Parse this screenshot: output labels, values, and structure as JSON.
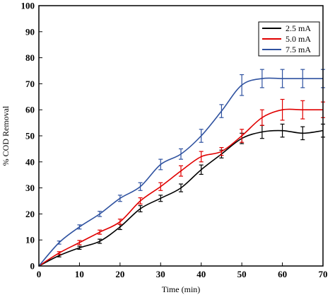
{
  "chart_data": {
    "type": "line",
    "xlabel": "Time (min)",
    "ylabel": "% COD Removal",
    "xlim": [
      0,
      70
    ],
    "ylim": [
      0,
      100
    ],
    "xticks": [
      0,
      10,
      20,
      30,
      40,
      50,
      60,
      70
    ],
    "yticks": [
      0,
      10,
      20,
      30,
      40,
      50,
      60,
      70,
      80,
      90,
      100
    ],
    "grid": false,
    "legend_position": "top-right",
    "x": [
      0,
      5,
      10,
      15,
      20,
      25,
      30,
      35,
      40,
      45,
      50,
      55,
      60,
      65,
      70
    ],
    "series": [
      {
        "name": "2.5 mA",
        "color": "#000000",
        "values": [
          0,
          4,
          7,
          9.5,
          15,
          22,
          26,
          30,
          37,
          43,
          49,
          51.5,
          52,
          51,
          52
        ],
        "error": [
          0,
          0.5,
          0.6,
          0.8,
          1,
          1.2,
          1.2,
          1.5,
          1.8,
          1.5,
          2,
          2.5,
          2.5,
          2.5,
          2.5
        ]
      },
      {
        "name": "5.0 mA",
        "color": "#e00000",
        "values": [
          0,
          5,
          9,
          13,
          17,
          25,
          30.5,
          36.5,
          42,
          44,
          50,
          57,
          60,
          60,
          60
        ],
        "error": [
          0,
          0.5,
          0.8,
          0.8,
          1,
          1.2,
          1.5,
          2,
          2,
          1.5,
          2.5,
          3,
          4,
          3.5,
          3
        ]
      },
      {
        "name": "7.5 mA",
        "color": "#2f52a0",
        "values": [
          0,
          9,
          15,
          20,
          26,
          30.5,
          39,
          43,
          50,
          59.5,
          69.5,
          72,
          72,
          72,
          72
        ],
        "error": [
          0,
          0.6,
          0.8,
          1,
          1.2,
          1.5,
          2,
          2,
          2.5,
          2.5,
          4,
          3.5,
          3.5,
          3.5,
          3.5
        ]
      }
    ]
  }
}
